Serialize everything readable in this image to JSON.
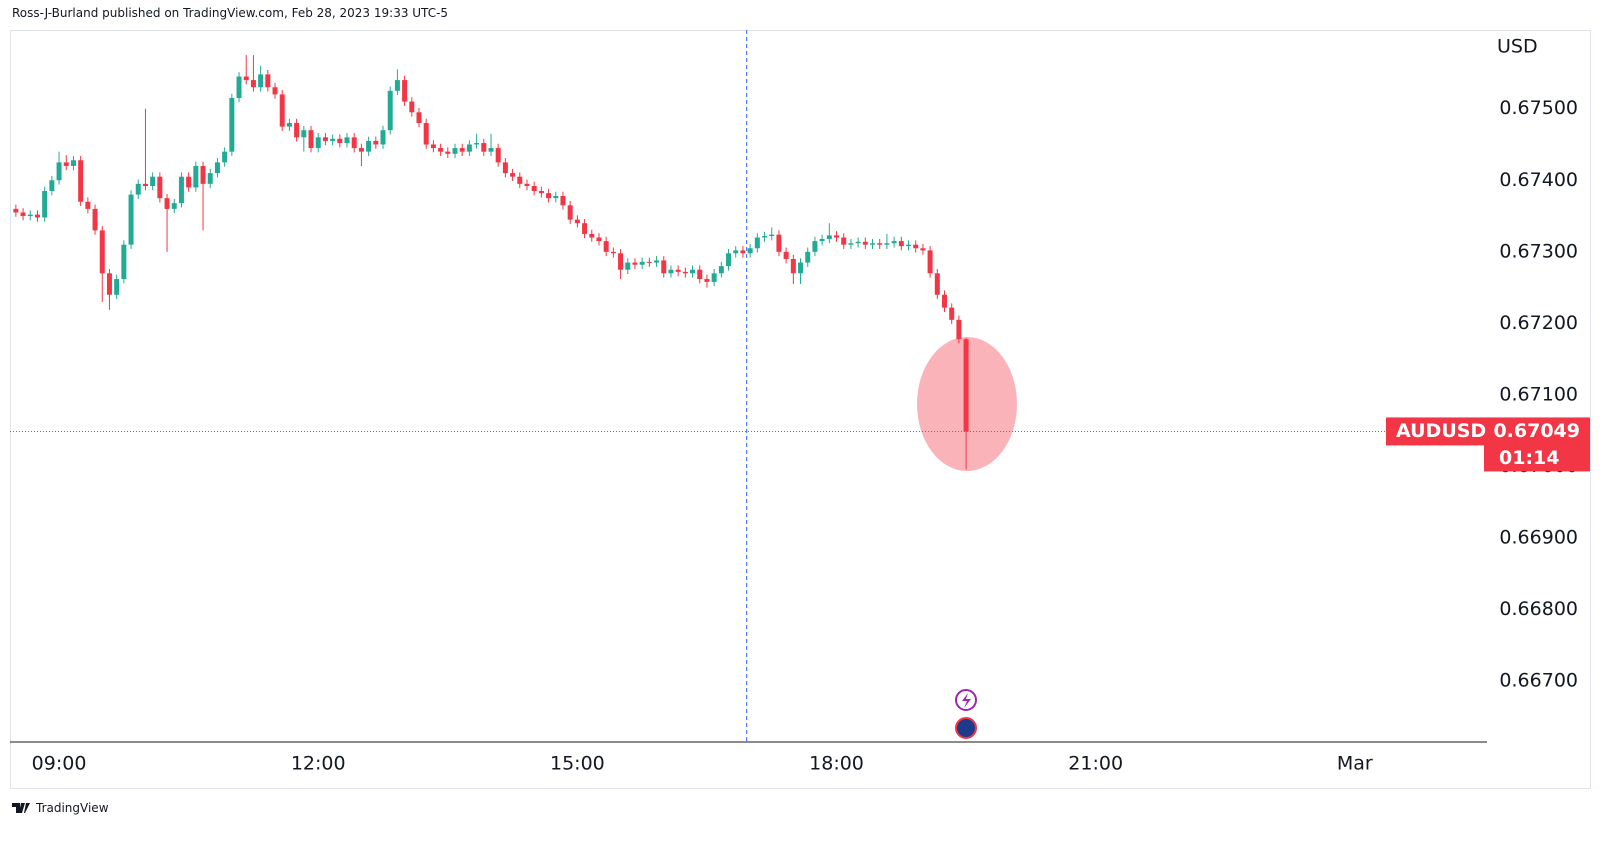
{
  "header": {
    "byline": "Ross-J-Burland published on TradingView.com, Feb 28, 2023 19:33 UTC-5"
  },
  "footer": {
    "brand": "TradingView"
  },
  "chart_data": {
    "type": "candlestick",
    "y_axis_label": "USD",
    "symbol": "AUDUSD",
    "last_price_label": "0.67049",
    "countdown": "01:14",
    "up_color": "#22ab94",
    "down_color": "#f23645",
    "grid": false,
    "crosshair_x": 16.96,
    "xlim": [
      8.432,
      25.53
    ],
    "ylim": [
      0.66615,
      0.6761
    ],
    "xticks": [
      {
        "value": 9,
        "label": "09:00"
      },
      {
        "value": 12,
        "label": "12:00"
      },
      {
        "value": 15,
        "label": "15:00"
      },
      {
        "value": 18,
        "label": "18:00"
      },
      {
        "value": 21,
        "label": "21:00"
      },
      {
        "value": 24,
        "label": "Mar"
      }
    ],
    "yticks": [
      {
        "value": 0.667,
        "label": "0.66700"
      },
      {
        "value": 0.668,
        "label": "0.66800"
      },
      {
        "value": 0.669,
        "label": "0.66900"
      },
      {
        "value": 0.67,
        "label": "0.67000"
      },
      {
        "value": 0.671,
        "label": "0.67100"
      },
      {
        "value": 0.672,
        "label": "0.67200"
      },
      {
        "value": 0.673,
        "label": "0.67300"
      },
      {
        "value": 0.674,
        "label": "0.67400"
      },
      {
        "value": 0.675,
        "label": "0.67500"
      }
    ],
    "x": [
      8.5,
      8.5833,
      8.6667,
      8.75,
      8.8333,
      8.9167,
      9,
      9.0833,
      9.1667,
      9.25,
      9.3333,
      9.4167,
      9.5,
      9.5833,
      9.6667,
      9.75,
      9.8333,
      9.9167,
      10,
      10.0833,
      10.1667,
      10.25,
      10.3333,
      10.4167,
      10.5,
      10.5833,
      10.6667,
      10.75,
      10.8333,
      10.9167,
      11,
      11.0833,
      11.1667,
      11.25,
      11.3333,
      11.4167,
      11.5,
      11.5833,
      11.6667,
      11.75,
      11.8333,
      11.9167,
      12,
      12.0833,
      12.1667,
      12.25,
      12.3333,
      12.4167,
      12.5,
      12.5833,
      12.6667,
      12.75,
      12.8333,
      12.9167,
      13,
      13.0833,
      13.1667,
      13.25,
      13.3333,
      13.4167,
      13.5,
      13.5833,
      13.6667,
      13.75,
      13.8333,
      13.9167,
      14,
      14.0833,
      14.1667,
      14.25,
      14.3333,
      14.4167,
      14.5,
      14.5833,
      14.6667,
      14.75,
      14.8333,
      14.9167,
      15,
      15.0833,
      15.1667,
      15.25,
      15.3333,
      15.4167,
      15.5,
      15.5833,
      15.6667,
      15.75,
      15.8333,
      15.9167,
      16,
      16.0833,
      16.1667,
      16.25,
      16.3333,
      16.4167,
      16.5,
      16.5833,
      16.6667,
      16.75,
      16.8333,
      16.9167,
      17,
      17.0833,
      17.1667,
      17.25,
      17.3333,
      17.4167,
      17.5,
      17.5833,
      17.6667,
      17.75,
      17.8333,
      17.9167,
      18,
      18.0833,
      18.1667,
      18.25,
      18.3333,
      18.4167,
      18.5,
      18.5833,
      18.6667,
      18.75,
      18.8333,
      18.9167,
      19,
      19.0833,
      19.1667,
      19.25,
      19.3333,
      19.4167,
      19.5
    ],
    "open": [
      0.6736,
      0.67355,
      0.6735,
      0.67352,
      0.67348,
      0.67385,
      0.674,
      0.67425,
      0.6742,
      0.67428,
      0.6737,
      0.6736,
      0.6733,
      0.6727,
      0.6724,
      0.67262,
      0.6731,
      0.6738,
      0.67395,
      0.67392,
      0.67405,
      0.67375,
      0.6736,
      0.67368,
      0.67405,
      0.6739,
      0.6742,
      0.67395,
      0.6741,
      0.67425,
      0.6744,
      0.67515,
      0.67545,
      0.6754,
      0.6753,
      0.67548,
      0.6753,
      0.6752,
      0.67475,
      0.6748,
      0.6746,
      0.6747,
      0.67445,
      0.6746,
      0.67455,
      0.67458,
      0.67452,
      0.6746,
      0.67445,
      0.6744,
      0.67455,
      0.6745,
      0.6747,
      0.67525,
      0.6754,
      0.6751,
      0.67495,
      0.6748,
      0.6745,
      0.67445,
      0.6744,
      0.67437,
      0.67445,
      0.6744,
      0.6745,
      0.67452,
      0.6744,
      0.67445,
      0.67425,
      0.6741,
      0.67405,
      0.67395,
      0.67392,
      0.67385,
      0.67382,
      0.67375,
      0.67378,
      0.67365,
      0.67345,
      0.6734,
      0.67325,
      0.6732,
      0.67315,
      0.673,
      0.67298,
      0.67275,
      0.67285,
      0.67282,
      0.67286,
      0.67285,
      0.67288,
      0.6727,
      0.67275,
      0.67272,
      0.6727,
      0.67275,
      0.67262,
      0.67258,
      0.6727,
      0.6728,
      0.67298,
      0.67302,
      0.67298,
      0.67305,
      0.6732,
      0.67322,
      0.67324,
      0.673,
      0.6729,
      0.6727,
      0.67285,
      0.673,
      0.67315,
      0.67318,
      0.67323,
      0.6732,
      0.6731,
      0.67312,
      0.67314,
      0.6731,
      0.67312,
      0.6731,
      0.67312,
      0.67315,
      0.67308,
      0.6731,
      0.67305,
      0.67302,
      0.6727,
      0.6724,
      0.67222,
      0.67205,
      0.67178
    ],
    "high": [
      0.67366,
      0.67361,
      0.67358,
      0.67358,
      0.67391,
      0.67406,
      0.6744,
      0.67435,
      0.67434,
      0.67434,
      0.67376,
      0.67366,
      0.67336,
      0.67276,
      0.67268,
      0.67316,
      0.67386,
      0.67401,
      0.675,
      0.67411,
      0.67411,
      0.67381,
      0.67374,
      0.67411,
      0.67411,
      0.67426,
      0.67426,
      0.67416,
      0.67431,
      0.67446,
      0.67521,
      0.67551,
      0.67575,
      0.67575,
      0.6756,
      0.67554,
      0.67536,
      0.67526,
      0.67486,
      0.67486,
      0.67476,
      0.67476,
      0.67466,
      0.67466,
      0.67464,
      0.67464,
      0.67466,
      0.67466,
      0.67451,
      0.67461,
      0.67461,
      0.67476,
      0.67531,
      0.67555,
      0.67546,
      0.67516,
      0.67501,
      0.67486,
      0.67456,
      0.67451,
      0.67446,
      0.67451,
      0.67451,
      0.67456,
      0.67465,
      0.67458,
      0.67465,
      0.67451,
      0.67431,
      0.67416,
      0.67411,
      0.67401,
      0.67398,
      0.67391,
      0.67388,
      0.67384,
      0.67384,
      0.67371,
      0.67351,
      0.67346,
      0.67331,
      0.67326,
      0.67321,
      0.67306,
      0.67304,
      0.67291,
      0.67291,
      0.67292,
      0.67292,
      0.67294,
      0.67294,
      0.67281,
      0.67281,
      0.67278,
      0.67281,
      0.67281,
      0.67268,
      0.67276,
      0.67286,
      0.67304,
      0.67308,
      0.67308,
      0.67311,
      0.67326,
      0.67328,
      0.67334,
      0.6733,
      0.67306,
      0.67296,
      0.67291,
      0.67306,
      0.67321,
      0.67324,
      0.6734,
      0.67329,
      0.67326,
      0.67318,
      0.6732,
      0.6732,
      0.67318,
      0.67318,
      0.67325,
      0.67321,
      0.67321,
      0.67316,
      0.67316,
      0.67311,
      0.67308,
      0.67276,
      0.67246,
      0.67228,
      0.67211,
      0.6718
    ],
    "low": [
      0.67349,
      0.67344,
      0.67344,
      0.67342,
      0.67342,
      0.67379,
      0.67394,
      0.67414,
      0.67414,
      0.67364,
      0.67354,
      0.67324,
      0.6723,
      0.67219,
      0.67234,
      0.67256,
      0.67304,
      0.67374,
      0.67386,
      0.67386,
      0.67369,
      0.673,
      0.67354,
      0.67362,
      0.67384,
      0.67384,
      0.6733,
      0.67389,
      0.67404,
      0.67419,
      0.67434,
      0.67509,
      0.67534,
      0.67524,
      0.67524,
      0.67524,
      0.67514,
      0.67469,
      0.67469,
      0.67454,
      0.6744,
      0.67439,
      0.67439,
      0.67449,
      0.67449,
      0.67446,
      0.67446,
      0.67439,
      0.6742,
      0.67434,
      0.67444,
      0.67444,
      0.67464,
      0.67519,
      0.67504,
      0.67489,
      0.67474,
      0.67444,
      0.67439,
      0.67434,
      0.67431,
      0.67431,
      0.67434,
      0.67434,
      0.67444,
      0.67434,
      0.67434,
      0.67419,
      0.67404,
      0.67399,
      0.67389,
      0.67386,
      0.67379,
      0.67376,
      0.67369,
      0.67369,
      0.67359,
      0.67339,
      0.67334,
      0.67319,
      0.67314,
      0.67309,
      0.67294,
      0.67292,
      0.67262,
      0.67269,
      0.67276,
      0.67276,
      0.67279,
      0.67279,
      0.67264,
      0.67264,
      0.67266,
      0.67264,
      0.67264,
      0.67256,
      0.6725,
      0.67252,
      0.67264,
      0.67274,
      0.67292,
      0.67292,
      0.67292,
      0.67299,
      0.67314,
      0.67316,
      0.67294,
      0.67284,
      0.67255,
      0.67255,
      0.67279,
      0.67294,
      0.67309,
      0.67312,
      0.67314,
      0.67304,
      0.67304,
      0.67306,
      0.67304,
      0.67304,
      0.67304,
      0.67304,
      0.67306,
      0.67302,
      0.67302,
      0.67299,
      0.67296,
      0.67264,
      0.67234,
      0.67216,
      0.67199,
      0.67172,
      0.66996
    ],
    "close": [
      0.67355,
      0.6735,
      0.67352,
      0.67348,
      0.67385,
      0.674,
      0.67425,
      0.6742,
      0.67428,
      0.6737,
      0.6736,
      0.6733,
      0.6727,
      0.6724,
      0.67262,
      0.6731,
      0.6738,
      0.67395,
      0.67392,
      0.67405,
      0.67375,
      0.6736,
      0.67368,
      0.67405,
      0.6739,
      0.6742,
      0.67395,
      0.6741,
      0.67425,
      0.6744,
      0.67515,
      0.67545,
      0.6754,
      0.6753,
      0.67548,
      0.6753,
      0.6752,
      0.67475,
      0.6748,
      0.6746,
      0.6747,
      0.67445,
      0.6746,
      0.67455,
      0.67458,
      0.67452,
      0.6746,
      0.67445,
      0.6744,
      0.67455,
      0.6745,
      0.6747,
      0.67525,
      0.6754,
      0.6751,
      0.67495,
      0.6748,
      0.6745,
      0.67445,
      0.6744,
      0.67437,
      0.67445,
      0.6744,
      0.6745,
      0.67452,
      0.6744,
      0.67445,
      0.67425,
      0.6741,
      0.67405,
      0.67395,
      0.67392,
      0.67385,
      0.67382,
      0.67375,
      0.67378,
      0.67365,
      0.67345,
      0.6734,
      0.67325,
      0.6732,
      0.67315,
      0.673,
      0.67298,
      0.67275,
      0.67285,
      0.67282,
      0.67286,
      0.67285,
      0.67288,
      0.6727,
      0.67275,
      0.67272,
      0.6727,
      0.67275,
      0.67262,
      0.67258,
      0.6727,
      0.6728,
      0.67298,
      0.67302,
      0.67298,
      0.67305,
      0.6732,
      0.67322,
      0.67324,
      0.673,
      0.6729,
      0.6727,
      0.67285,
      0.673,
      0.67315,
      0.67318,
      0.67323,
      0.6732,
      0.6731,
      0.67312,
      0.67314,
      0.6731,
      0.67312,
      0.6731,
      0.67312,
      0.67315,
      0.67308,
      0.6731,
      0.67305,
      0.67302,
      0.6727,
      0.6724,
      0.67222,
      0.67205,
      0.67178,
      0.67049
    ]
  }
}
